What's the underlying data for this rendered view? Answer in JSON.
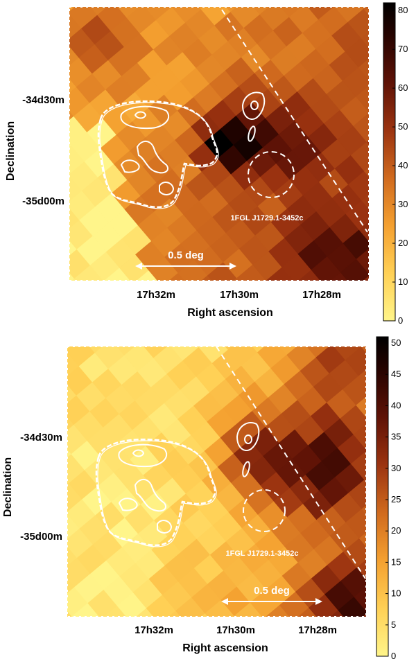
{
  "colors": {
    "low": "#fff58a",
    "high": "#000000",
    "contour": "#ffffff"
  },
  "chart_data": [
    {
      "type": "heatmap",
      "panel": "top",
      "xlabel": "Right ascension",
      "ylabel": "Declination",
      "x_ticks": [
        "17h32m",
        "17h30m",
        "17h28m"
      ],
      "y_ticks": [
        "-34d30m",
        "-35d00m"
      ],
      "colorbar": {
        "ticks": [
          0,
          10,
          20,
          30,
          40,
          50,
          60,
          70,
          80
        ],
        "range": [
          0,
          82
        ]
      },
      "source_label": "1FGL J1729.1-3452c",
      "scale_label": "0.5 deg"
    },
    {
      "type": "heatmap",
      "panel": "bottom",
      "xlabel": "Right ascension",
      "ylabel": "Declination",
      "x_ticks": [
        "17h32m",
        "17h30m",
        "17h28m"
      ],
      "y_ticks": [
        "-34d30m",
        "-35d00m"
      ],
      "colorbar": {
        "ticks": [
          0,
          5,
          10,
          15,
          20,
          25,
          30,
          35,
          40,
          45,
          50
        ],
        "range": [
          0,
          51
        ]
      },
      "source_label": "1FGL J1729.1-3452c",
      "scale_label": "0.5 deg"
    }
  ]
}
